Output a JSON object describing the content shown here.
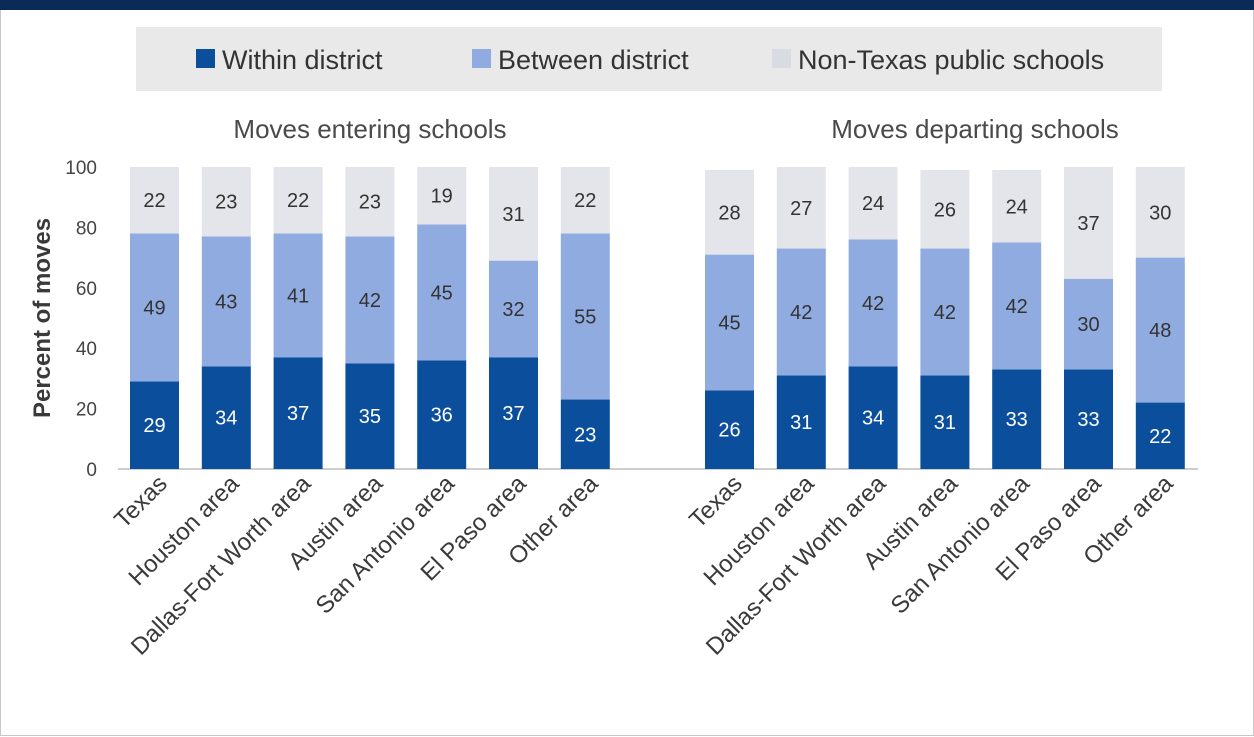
{
  "chart_data": {
    "type": "bar",
    "stacked": true,
    "ylabel": "Percent of moves",
    "ylim": [
      0,
      100
    ],
    "yticks": [
      0,
      20,
      40,
      60,
      80,
      100
    ],
    "grid": false,
    "legend_placement": "top",
    "series_meta": [
      {
        "name": "Within district",
        "color": "#0b4f9c"
      },
      {
        "name": "Between district",
        "color": "#8fabe0"
      },
      {
        "name": "Non-Texas public schools",
        "color": "#e4e5ea"
      }
    ],
    "panels": [
      {
        "title": "Moves entering schools",
        "categories": [
          "Texas",
          "Houston area",
          "Dallas-Fort Worth area",
          "Austin area",
          "San Antonio area",
          "El Paso area",
          "Other area"
        ],
        "series": [
          {
            "name": "Within district",
            "values": [
              29,
              34,
              37,
              35,
              36,
              37,
              23
            ]
          },
          {
            "name": "Between district",
            "values": [
              49,
              43,
              41,
              42,
              45,
              32,
              55
            ]
          },
          {
            "name": "Non-Texas public schools",
            "values": [
              22,
              23,
              22,
              23,
              19,
              31,
              22
            ]
          }
        ]
      },
      {
        "title": "Moves departing schools",
        "categories": [
          "Texas",
          "Houston area",
          "Dallas-Fort Worth area",
          "Austin area",
          "San Antonio area",
          "El Paso area",
          "Other area"
        ],
        "series": [
          {
            "name": "Within district",
            "values": [
              26,
              31,
              34,
              31,
              33,
              33,
              22
            ]
          },
          {
            "name": "Between district",
            "values": [
              45,
              42,
              42,
              42,
              42,
              30,
              48
            ]
          },
          {
            "name": "Non-Texas public schools",
            "values": [
              28,
              27,
              24,
              26,
              24,
              37,
              30
            ]
          }
        ]
      }
    ]
  }
}
